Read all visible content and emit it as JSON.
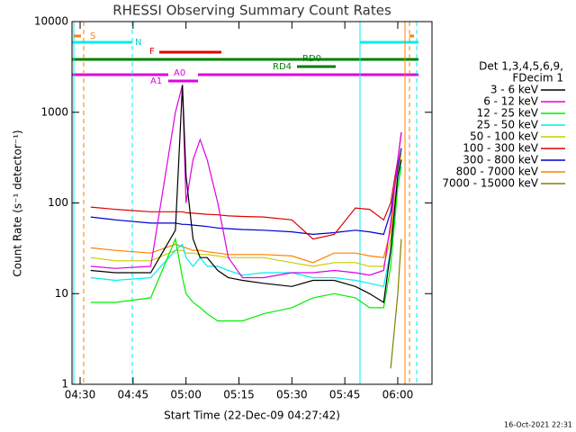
{
  "chart_data": {
    "type": "line",
    "title": "RHESSI Observing Summary Count Rates",
    "xlabel": "Start Time (22-Dec-09 04:27:42)",
    "ylabel": "Count Rate (s⁻¹ detector⁻¹)",
    "yscale": "log",
    "xlim": [
      267.7,
      369.7
    ],
    "ylim": [
      1,
      10000
    ],
    "xticks": [
      {
        "value": 270,
        "label": "04:30"
      },
      {
        "value": 285,
        "label": "04:45"
      },
      {
        "value": 300,
        "label": "05:00"
      },
      {
        "value": 315,
        "label": "05:15"
      },
      {
        "value": 330,
        "label": "05:30"
      },
      {
        "value": 345,
        "label": "05:45"
      },
      {
        "value": 360,
        "label": "06:00"
      }
    ],
    "yticks": [
      1,
      10,
      100,
      1000,
      10000
    ],
    "legend_header": [
      "Det 1,3,4,5,6,9,",
      "FDecim 1"
    ],
    "annotations": [
      "S",
      "N",
      "F",
      "A0",
      "A1",
      "RD0",
      "RD4"
    ],
    "footer": "16-Oct-2021 22:31",
    "x": [
      273,
      280,
      290,
      297,
      299,
      300,
      302,
      304,
      306,
      309,
      312,
      316,
      322,
      330,
      336,
      342,
      348,
      352,
      356,
      358,
      360,
      361
    ],
    "series": [
      {
        "name": "3 - 6 keV",
        "color": "#000000",
        "values": [
          18,
          17,
          17,
          50,
          2000,
          200,
          40,
          25,
          25,
          18,
          15,
          14,
          13,
          12,
          14,
          14,
          12,
          10,
          8,
          30,
          200,
          300
        ]
      },
      {
        "name": "6 - 12 keV",
        "color": "#e000e0",
        "values": [
          20,
          19,
          20,
          1000,
          2000,
          100,
          300,
          500,
          300,
          100,
          25,
          15,
          15,
          17,
          17,
          18,
          17,
          16,
          18,
          60,
          300,
          600
        ]
      },
      {
        "name": "12 - 25 keV",
        "color": "#00ee00",
        "values": [
          8,
          8,
          9,
          40,
          15,
          10,
          8,
          7,
          6,
          5,
          5,
          5,
          6,
          7,
          9,
          10,
          9,
          7,
          7,
          20,
          150,
          250
        ]
      },
      {
        "name": "25 - 50 keV",
        "color": "#00eeee",
        "values": [
          15,
          14,
          15,
          30,
          35,
          25,
          20,
          25,
          20,
          20,
          18,
          16,
          17,
          17,
          15,
          15,
          14,
          13,
          12,
          30,
          150,
          300
        ]
      },
      {
        "name": "50 - 100 keV",
        "color": "#cccc00",
        "values": [
          25,
          23,
          23,
          30,
          30,
          28,
          28,
          27,
          27,
          26,
          25,
          25,
          25,
          22,
          20,
          22,
          22,
          20,
          20,
          40,
          200,
          350
        ]
      },
      {
        "name": "100 - 300 keV",
        "color": "#e00000",
        "values": [
          90,
          85,
          80,
          80,
          80,
          78,
          77,
          76,
          75,
          74,
          72,
          71,
          70,
          65,
          40,
          45,
          88,
          85,
          65,
          100,
          300,
          600
        ]
      },
      {
        "name": "300 - 800 keV",
        "color": "#0000cc",
        "values": [
          70,
          65,
          60,
          60,
          58,
          58,
          57,
          56,
          55,
          53,
          52,
          51,
          50,
          48,
          45,
          47,
          50,
          48,
          45,
          80,
          250,
          400
        ]
      },
      {
        "name": "800 - 7000 keV",
        "color": "#ff8000",
        "values": [
          32,
          30,
          28,
          35,
          33,
          32,
          30,
          30,
          29,
          28,
          27,
          27,
          27,
          26,
          22,
          28,
          28,
          26,
          25,
          50,
          200,
          400
        ]
      },
      {
        "name": "7000 - 15000 keV",
        "color": "#808000",
        "values": [
          null,
          null,
          null,
          null,
          null,
          null,
          null,
          null,
          null,
          null,
          null,
          null,
          null,
          null,
          null,
          null,
          null,
          null,
          null,
          1.5,
          10,
          40
        ]
      }
    ]
  }
}
